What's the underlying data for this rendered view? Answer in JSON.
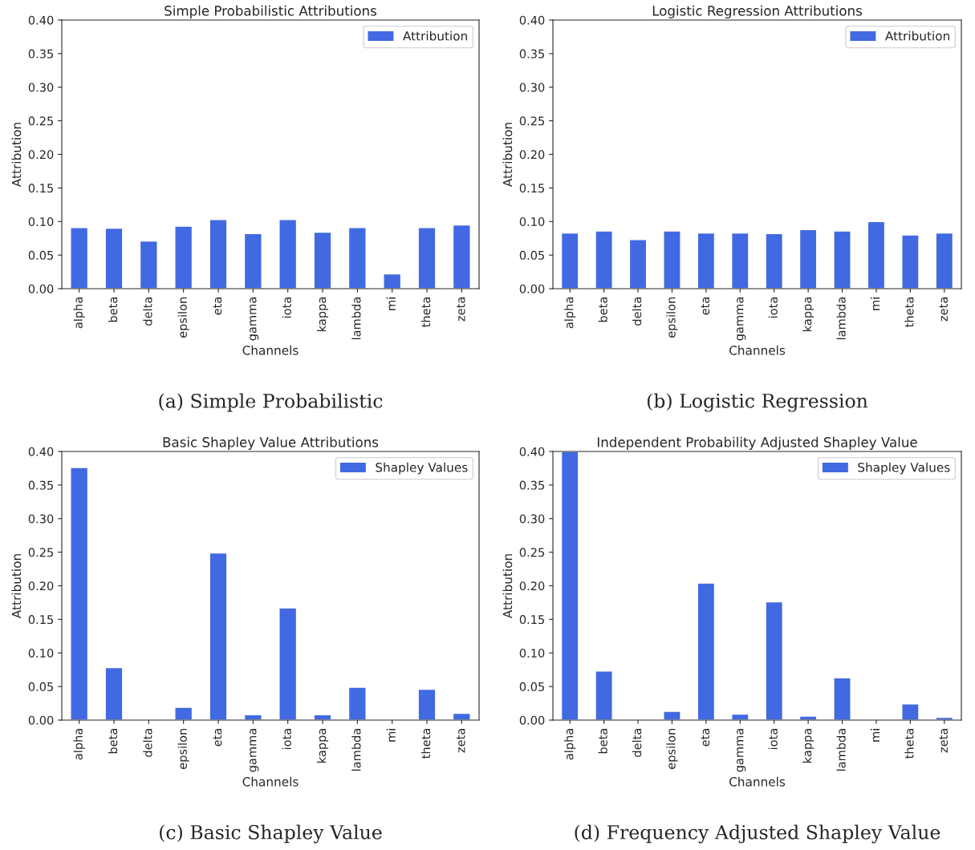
{
  "chart_data": [
    {
      "type": "bar",
      "title": "Simple Probabilistic Attributions",
      "xlabel": "Channels",
      "ylabel": "Attribution",
      "categories": [
        "alpha",
        "beta",
        "delta",
        "epsilon",
        "eta",
        "gamma",
        "iota",
        "kappa",
        "lambda",
        "mi",
        "theta",
        "zeta"
      ],
      "series": [
        {
          "name": "Attribution",
          "color": "#4169e1",
          "values": [
            0.091,
            0.09,
            0.071,
            0.093,
            0.103,
            0.082,
            0.103,
            0.084,
            0.091,
            0.022,
            0.091,
            0.095
          ]
        }
      ],
      "ylim": [
        0,
        0.4
      ],
      "yticks": [
        {
          "value": 0,
          "label": "0.00"
        },
        {
          "value": 0.05,
          "label": "0.05"
        },
        {
          "value": 0.1,
          "label": "0.10"
        },
        {
          "value": 0.15,
          "label": "0.15"
        },
        {
          "value": 0.2,
          "label": "0.20"
        },
        {
          "value": 0.25,
          "label": "0.25"
        },
        {
          "value": 0.3,
          "label": "0.30"
        },
        {
          "value": 0.35,
          "label": "0.35"
        },
        {
          "value": 0.4,
          "label": "0.40"
        }
      ],
      "legend": "top right",
      "annotations": [
        "(a) Simple Probabilistic"
      ]
    },
    {
      "type": "bar",
      "title": "Logistic Regression Attributions",
      "xlabel": "Channels",
      "ylabel": "Attribution",
      "categories": [
        "alpha",
        "beta",
        "delta",
        "epsilon",
        "eta",
        "gamma",
        "iota",
        "kappa",
        "lambda",
        "mi",
        "theta",
        "zeta"
      ],
      "series": [
        {
          "name": "Attribution",
          "color": "#4169e1",
          "values": [
            0.083,
            0.086,
            0.073,
            0.086,
            0.083,
            0.083,
            0.082,
            0.088,
            0.086,
            0.1,
            0.08,
            0.083
          ]
        }
      ],
      "ylim": [
        0,
        0.4
      ],
      "yticks": [
        {
          "value": 0,
          "label": "0.00"
        },
        {
          "value": 0.05,
          "label": "0.05"
        },
        {
          "value": 0.1,
          "label": "0.10"
        },
        {
          "value": 0.15,
          "label": "0.15"
        },
        {
          "value": 0.2,
          "label": "0.20"
        },
        {
          "value": 0.25,
          "label": "0.25"
        },
        {
          "value": 0.3,
          "label": "0.30"
        },
        {
          "value": 0.35,
          "label": "0.35"
        },
        {
          "value": 0.4,
          "label": "0.40"
        }
      ],
      "legend": "top right",
      "annotations": [
        "(b) Logistic Regression"
      ]
    },
    {
      "type": "bar",
      "title": "Basic Shapley Value Attributions",
      "xlabel": "Channels",
      "ylabel": "Attribution",
      "categories": [
        "alpha",
        "beta",
        "delta",
        "epsilon",
        "eta",
        "gamma",
        "iota",
        "kappa",
        "lambda",
        "mi",
        "theta",
        "zeta"
      ],
      "series": [
        {
          "name": "Shapley Values",
          "color": "#4169e1",
          "values": [
            0.376,
            0.078,
            null,
            0.019,
            0.249,
            0.008,
            0.167,
            0.008,
            0.049,
            null,
            0.046,
            0.01
          ]
        }
      ],
      "ylim": [
        0,
        0.4
      ],
      "yticks": [
        {
          "value": 0,
          "label": "0.00"
        },
        {
          "value": 0.05,
          "label": "0.05"
        },
        {
          "value": 0.1,
          "label": "0.10"
        },
        {
          "value": 0.15,
          "label": "0.15"
        },
        {
          "value": 0.2,
          "label": "0.20"
        },
        {
          "value": 0.25,
          "label": "0.25"
        },
        {
          "value": 0.3,
          "label": "0.30"
        },
        {
          "value": 0.35,
          "label": "0.35"
        },
        {
          "value": 0.4,
          "label": "0.40"
        }
      ],
      "legend": "top right",
      "annotations": [
        "(c) Basic Shapley Value"
      ]
    },
    {
      "type": "bar",
      "title": "Independent Probability Adjusted Shapley Value",
      "xlabel": "Channels",
      "ylabel": "Attribution",
      "categories": [
        "alpha",
        "beta",
        "delta",
        "epsilon",
        "eta",
        "gamma",
        "iota",
        "kappa",
        "lambda",
        "mi",
        "theta",
        "zeta"
      ],
      "series": [
        {
          "name": "Shapley Values",
          "color": "#4169e1",
          "values": [
            0.4,
            0.073,
            null,
            0.013,
            0.204,
            0.009,
            0.176,
            0.006,
            0.063,
            null,
            0.024,
            0.004
          ]
        }
      ],
      "ylim": [
        0,
        0.4
      ],
      "yticks": [
        {
          "value": 0,
          "label": "0.00"
        },
        {
          "value": 0.05,
          "label": "0.05"
        },
        {
          "value": 0.1,
          "label": "0.10"
        },
        {
          "value": 0.15,
          "label": "0.15"
        },
        {
          "value": 0.2,
          "label": "0.20"
        },
        {
          "value": 0.25,
          "label": "0.25"
        },
        {
          "value": 0.3,
          "label": "0.30"
        },
        {
          "value": 0.35,
          "label": "0.35"
        },
        {
          "value": 0.4,
          "label": "0.40"
        }
      ],
      "legend": "top right",
      "annotations": [
        "(d) Frequency Adjusted Shapley Value"
      ]
    }
  ]
}
